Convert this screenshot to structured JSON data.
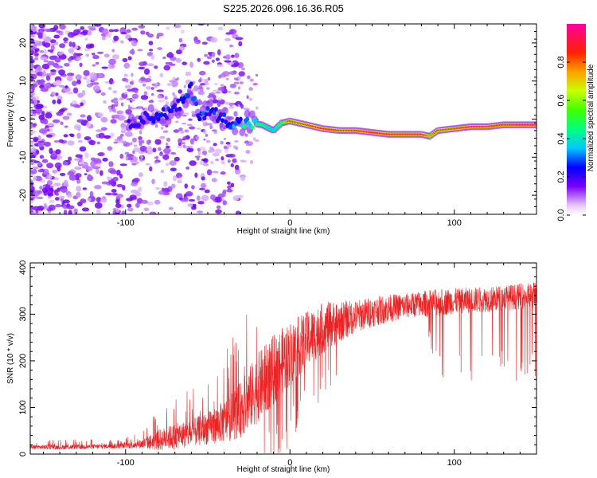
{
  "title": "S225.2026.096.16.36.R05",
  "chart_data": [
    {
      "type": "heatmap",
      "name": "spectrogram",
      "xlabel": "Height of straight line (km)",
      "ylabel": "Frequency (Hz)",
      "xlim": [
        -158,
        150
      ],
      "ylim": [
        -25,
        25
      ],
      "xticks": [
        -100,
        0,
        100
      ],
      "xtick_labels": [
        "-100",
        "0",
        "100"
      ],
      "yticks": [
        -20,
        -10,
        0,
        10,
        20
      ],
      "ytick_labels": [
        "-20",
        "-10",
        "0",
        "10",
        "20"
      ],
      "ridge": {
        "x": [
          -98,
          -90,
          -80,
          -72,
          -66,
          -60,
          -55,
          -48,
          -40,
          -33,
          -25,
          -17,
          -10,
          -5,
          0,
          10,
          20,
          30,
          40,
          50,
          60,
          70,
          80,
          85,
          90,
          100,
          110,
          120,
          130,
          140,
          150
        ],
        "freq": [
          -1,
          0,
          1,
          2,
          4,
          8,
          1,
          2,
          0,
          -1,
          -1,
          -1.5,
          -3,
          -1,
          -0.5,
          -1.5,
          -2.5,
          -3,
          -3,
          -3.5,
          -4,
          -4,
          -4,
          -4.5,
          -3,
          -2.5,
          -2,
          -2,
          -1.5,
          -1.5,
          -1.5
        ],
        "amplitude": [
          0.28,
          0.3,
          0.33,
          0.36,
          0.4,
          0.45,
          0.38,
          0.36,
          0.42,
          0.55,
          0.6,
          0.6,
          0.5,
          0.65,
          0.85,
          0.85,
          0.9,
          0.9,
          0.92,
          0.93,
          0.93,
          0.94,
          0.9,
          0.75,
          0.85,
          0.9,
          0.92,
          0.93,
          0.94,
          0.95,
          0.95
        ]
      }
    },
    {
      "type": "colorbar",
      "name": "amplitude-scale",
      "label": "Normalized spectral amplitude",
      "range": [
        0,
        1
      ],
      "ticks": [
        0.0,
        0.2,
        0.4,
        0.6,
        0.8
      ],
      "tick_labels": [
        "0.0",
        "0.2",
        "0.4",
        "0.6",
        "0.8"
      ]
    },
    {
      "type": "line",
      "name": "snr",
      "xlabel": "Height of straight line (km)",
      "ylabel": "SNR (10 * v/v)",
      "xlim": [
        -158,
        150
      ],
      "ylim": [
        0,
        410
      ],
      "xticks": [
        -100,
        0,
        100
      ],
      "xtick_labels": [
        "-100",
        "0",
        "100"
      ],
      "yticks": [
        0,
        100,
        200,
        300,
        400
      ],
      "ytick_labels": [
        "0",
        "100",
        "200",
        "300",
        "400"
      ],
      "color": "#ee2222",
      "series": [
        {
          "name": "SNR",
          "x": [
            -158,
            -140,
            -120,
            -100,
            -90,
            -80,
            -70,
            -60,
            -50,
            -40,
            -30,
            -20,
            -10,
            0,
            10,
            20,
            30,
            40,
            50,
            60,
            70,
            80,
            90,
            100,
            110,
            120,
            130,
            140,
            150
          ],
          "base": [
            15,
            15,
            16,
            18,
            22,
            30,
            38,
            45,
            55,
            70,
            95,
            140,
            180,
            215,
            245,
            270,
            285,
            295,
            305,
            312,
            318,
            322,
            325,
            328,
            330,
            332,
            335,
            338,
            340
          ],
          "spread": [
            10,
            10,
            10,
            12,
            20,
            45,
            55,
            60,
            70,
            90,
            120,
            150,
            150,
            140,
            120,
            110,
            90,
            70,
            65,
            60,
            55,
            55,
            60,
            55,
            55,
            55,
            55,
            55,
            60
          ],
          "dropout_depth": [
            0,
            0,
            0,
            0,
            0,
            0,
            0,
            0,
            0,
            0,
            0,
            0,
            0,
            0,
            0,
            0,
            0,
            0,
            0,
            0,
            0,
            0,
            150,
            165,
            160,
            160,
            160,
            165,
            160
          ]
        }
      ]
    }
  ]
}
